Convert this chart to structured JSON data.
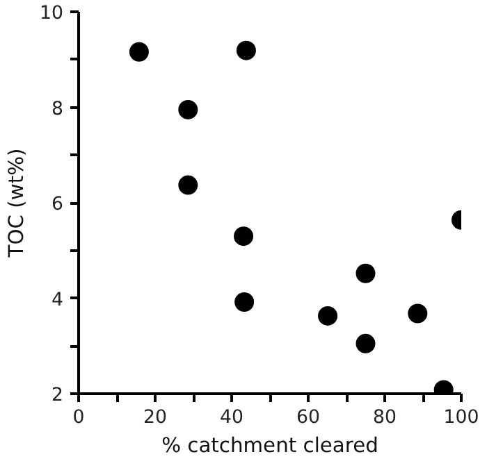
{
  "chart_data": {
    "type": "scatter",
    "xlabel": "% catchment cleared",
    "ylabel": "TOC (wt%)",
    "x": [
      15.8,
      43.8,
      28.6,
      28.6,
      43.1,
      100,
      75,
      43.3,
      65.1,
      88.6,
      75,
      95.4
    ],
    "values": [
      9.16,
      9.19,
      7.95,
      6.37,
      5.3,
      5.64,
      4.52,
      3.92,
      3.63,
      3.68,
      3.05,
      2.08
    ],
    "color": "#000000",
    "marker": "circle",
    "grid": false,
    "xlim": [
      0,
      100
    ],
    "ylim": [
      2,
      10
    ],
    "xticks": [
      0,
      {
        "value": 10,
        "label": null
      },
      20,
      {
        "value": 30,
        "label": null
      },
      40,
      {
        "value": 50,
        "label": null
      },
      60,
      {
        "value": 70,
        "label": null
      },
      80,
      {
        "value": 90,
        "label": null
      },
      100
    ],
    "yticks": [
      2,
      {
        "value": 3,
        "label": null
      },
      4,
      {
        "value": 5,
        "label": null
      },
      6,
      {
        "value": 7,
        "label": null
      },
      8,
      {
        "value": 9,
        "label": null
      },
      10
    ]
  }
}
